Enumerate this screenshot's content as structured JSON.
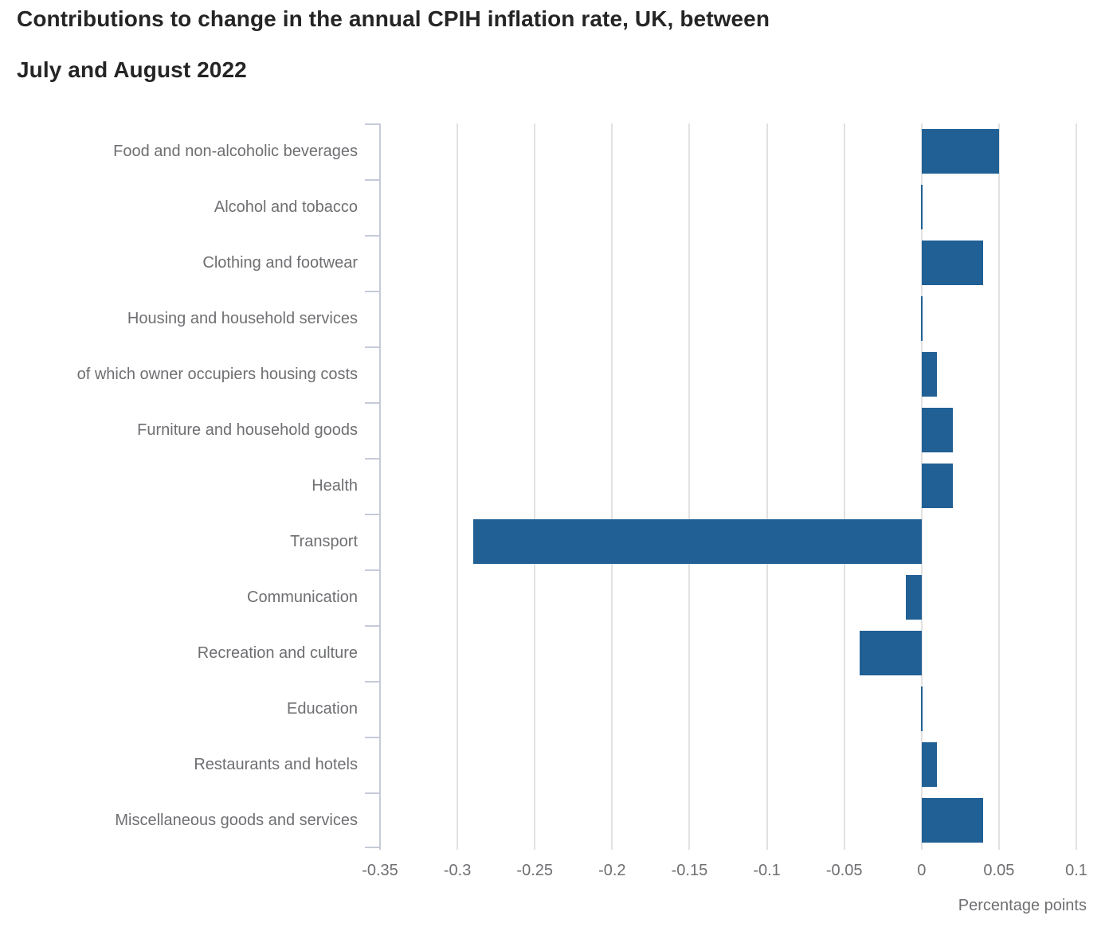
{
  "title": {
    "line1": "Contributions to change in the annual CPIH inflation rate, UK, between",
    "line2": "July and August 2022"
  },
  "chart_data": {
    "type": "bar",
    "orientation": "horizontal",
    "title": "Contributions to change in the annual CPIH inflation rate, UK, between July and August 2022",
    "xlabel": "Percentage points",
    "ylabel": "",
    "categories": [
      "Food and non-alcoholic beverages",
      "Alcohol and tobacco",
      "Clothing and footwear",
      "Housing and household services",
      "of which owner occupiers housing costs",
      "Furniture and household goods",
      "Health",
      "Transport",
      "Communication",
      "Recreation and culture",
      "Education",
      "Restaurants and hotels",
      "Miscellaneous goods and services"
    ],
    "values": [
      0.05,
      0.0,
      0.04,
      0.0,
      0.01,
      0.02,
      0.02,
      -0.29,
      -0.01,
      -0.04,
      0.0,
      0.01,
      0.04
    ],
    "xlim": [
      -0.35,
      0.1
    ],
    "x_ticks": [
      -0.35,
      -0.3,
      -0.25,
      -0.2,
      -0.15,
      -0.1,
      -0.05,
      0,
      0.05,
      0.1
    ],
    "x_tick_labels": [
      "-0.35",
      "-0.3",
      "-0.25",
      "-0.2",
      "-0.15",
      "-0.1",
      "-0.05",
      "0",
      "0.05",
      "0.1"
    ],
    "grid": true,
    "legend": false,
    "bar_color": "#206095",
    "gridline_color": "#e2e2e2",
    "axis_color": "#c6cbd8",
    "label_color": "#6e6f72",
    "title_color": "#252525"
  }
}
